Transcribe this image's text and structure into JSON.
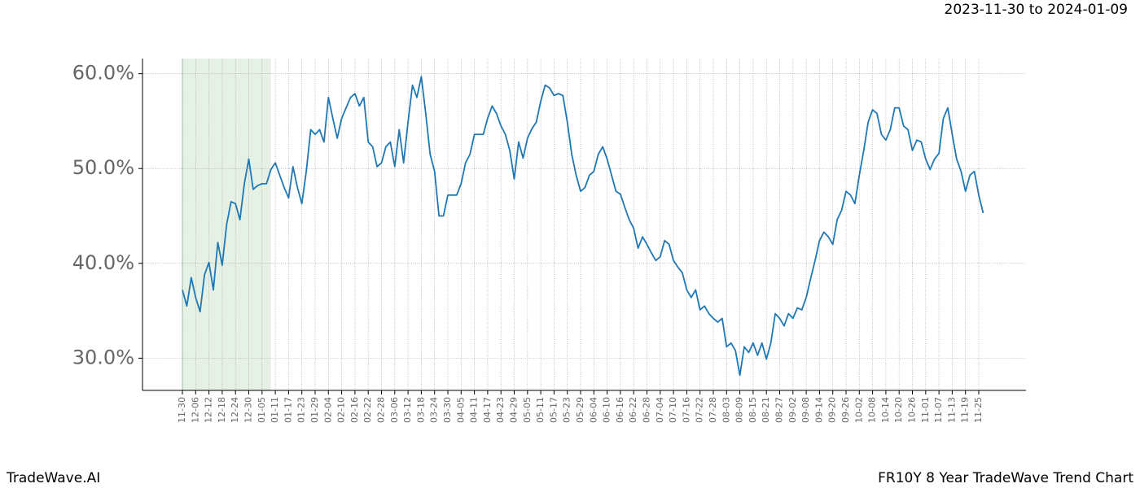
{
  "chart_data": {
    "type": "line",
    "title": "FR10Y 8 Year TradeWave Trend Chart",
    "subtitle": "2023-11-30 to 2024-01-09",
    "source": "TradeWave.AI",
    "categories": [
      "11-30",
      null,
      null,
      "12-06",
      null,
      null,
      "12-12",
      null,
      null,
      "12-18",
      null,
      null,
      "12-24",
      null,
      null,
      "12-30",
      null,
      null,
      "01-05",
      null,
      null,
      "01-11",
      null,
      null,
      "01-17",
      null,
      null,
      "01-23",
      null,
      null,
      "01-29",
      null,
      null,
      "02-04",
      null,
      null,
      "02-10",
      null,
      null,
      "02-16",
      null,
      null,
      "02-22",
      null,
      null,
      "02-28",
      null,
      null,
      "03-06",
      null,
      null,
      "03-12",
      null,
      null,
      "03-18",
      null,
      null,
      "03-24",
      null,
      null,
      "03-30",
      null,
      null,
      "04-05",
      null,
      null,
      "04-11",
      null,
      null,
      "04-17",
      null,
      null,
      "04-23",
      null,
      null,
      "04-29",
      null,
      null,
      "05-05",
      null,
      null,
      "05-11",
      null,
      null,
      "05-17",
      null,
      null,
      "05-23",
      null,
      null,
      "05-29",
      null,
      null,
      "06-04",
      null,
      null,
      "06-10",
      null,
      null,
      "06-16",
      null,
      null,
      "06-22",
      null,
      null,
      "06-28",
      null,
      null,
      "07-04",
      null,
      null,
      "07-10",
      null,
      null,
      "07-16",
      null,
      null,
      "07-22",
      null,
      null,
      "07-28",
      null,
      null,
      "08-03",
      null,
      null,
      "08-09",
      null,
      null,
      "08-15",
      null,
      null,
      "08-21",
      null,
      null,
      "08-27",
      null,
      null,
      "09-02",
      null,
      null,
      "09-08",
      null,
      null,
      "09-14",
      null,
      null,
      "09-20",
      null,
      null,
      "09-26",
      null,
      null,
      "10-02",
      null,
      null,
      "10-08",
      null,
      null,
      "10-14",
      null,
      null,
      "10-20",
      null,
      null,
      "10-26",
      null,
      null,
      "11-01",
      null,
      null,
      "11-07",
      null,
      null,
      "11-13",
      null,
      null,
      "11-19",
      null,
      null,
      "11-25",
      null
    ],
    "values": [
      37.2,
      35.5,
      38.5,
      36.4,
      34.9,
      38.8,
      40.1,
      37.2,
      42.2,
      39.8,
      44.1,
      46.5,
      46.3,
      44.6,
      48.4,
      51.0,
      47.8,
      48.2,
      48.4,
      48.4,
      49.9,
      50.6,
      49.3,
      48.0,
      46.9,
      50.2,
      48.0,
      46.3,
      49.7,
      54.1,
      53.6,
      54.1,
      52.8,
      57.5,
      55.3,
      53.2,
      55.3,
      56.4,
      57.5,
      57.9,
      56.6,
      57.5,
      52.8,
      52.3,
      50.2,
      50.6,
      52.3,
      52.8,
      50.2,
      54.1,
      50.6,
      54.9,
      58.8,
      57.5,
      59.7,
      55.8,
      51.5,
      49.7,
      45.0,
      45.0,
      47.2,
      47.2,
      47.2,
      48.4,
      50.6,
      51.5,
      53.6,
      53.6,
      53.6,
      55.3,
      56.6,
      55.8,
      54.5,
      53.6,
      51.9,
      48.9,
      52.8,
      51.1,
      53.2,
      54.2,
      54.9,
      57.1,
      58.8,
      58.5,
      57.7,
      57.9,
      57.7,
      54.9,
      51.5,
      49.3,
      47.6,
      48.0,
      49.3,
      49.7,
      51.5,
      52.3,
      51.0,
      49.3,
      47.6,
      47.3,
      45.9,
      44.6,
      43.7,
      41.6,
      42.8,
      42.0,
      41.1,
      40.3,
      40.7,
      42.4,
      42.0,
      40.3,
      39.6,
      39.0,
      37.2,
      36.4,
      37.2,
      35.1,
      35.5,
      34.7,
      34.2,
      33.8,
      34.2,
      31.2,
      31.6,
      30.8,
      28.2,
      31.2,
      30.6,
      31.6,
      30.3,
      31.6,
      29.9,
      31.6,
      34.7,
      34.2,
      33.4,
      34.7,
      34.2,
      35.3,
      35.1,
      36.4,
      38.4,
      40.3,
      42.4,
      43.3,
      42.8,
      42.0,
      44.6,
      45.6,
      47.6,
      47.2,
      46.3,
      49.3,
      51.9,
      54.9,
      56.2,
      55.8,
      53.6,
      53.0,
      54.1,
      56.4,
      56.4,
      54.5,
      54.1,
      51.9,
      53.0,
      52.8,
      51.0,
      49.9,
      51.0,
      51.6,
      55.3,
      56.4,
      53.6,
      51.0,
      49.7,
      47.6,
      49.3,
      49.7,
      47.2,
      45.3
    ],
    "color": "#1f77b4",
    "shaded_range": [
      0,
      20
    ],
    "shade_color": "#e5f1e5",
    "ylim": [
      26.6,
      61.6
    ],
    "yticks": [
      {
        "value": 30,
        "label": "30.0%"
      },
      {
        "value": 40,
        "label": "40.0%"
      },
      {
        "value": 50,
        "label": "50.0%"
      },
      {
        "value": 60,
        "label": "60.0%"
      }
    ],
    "grid": true
  }
}
